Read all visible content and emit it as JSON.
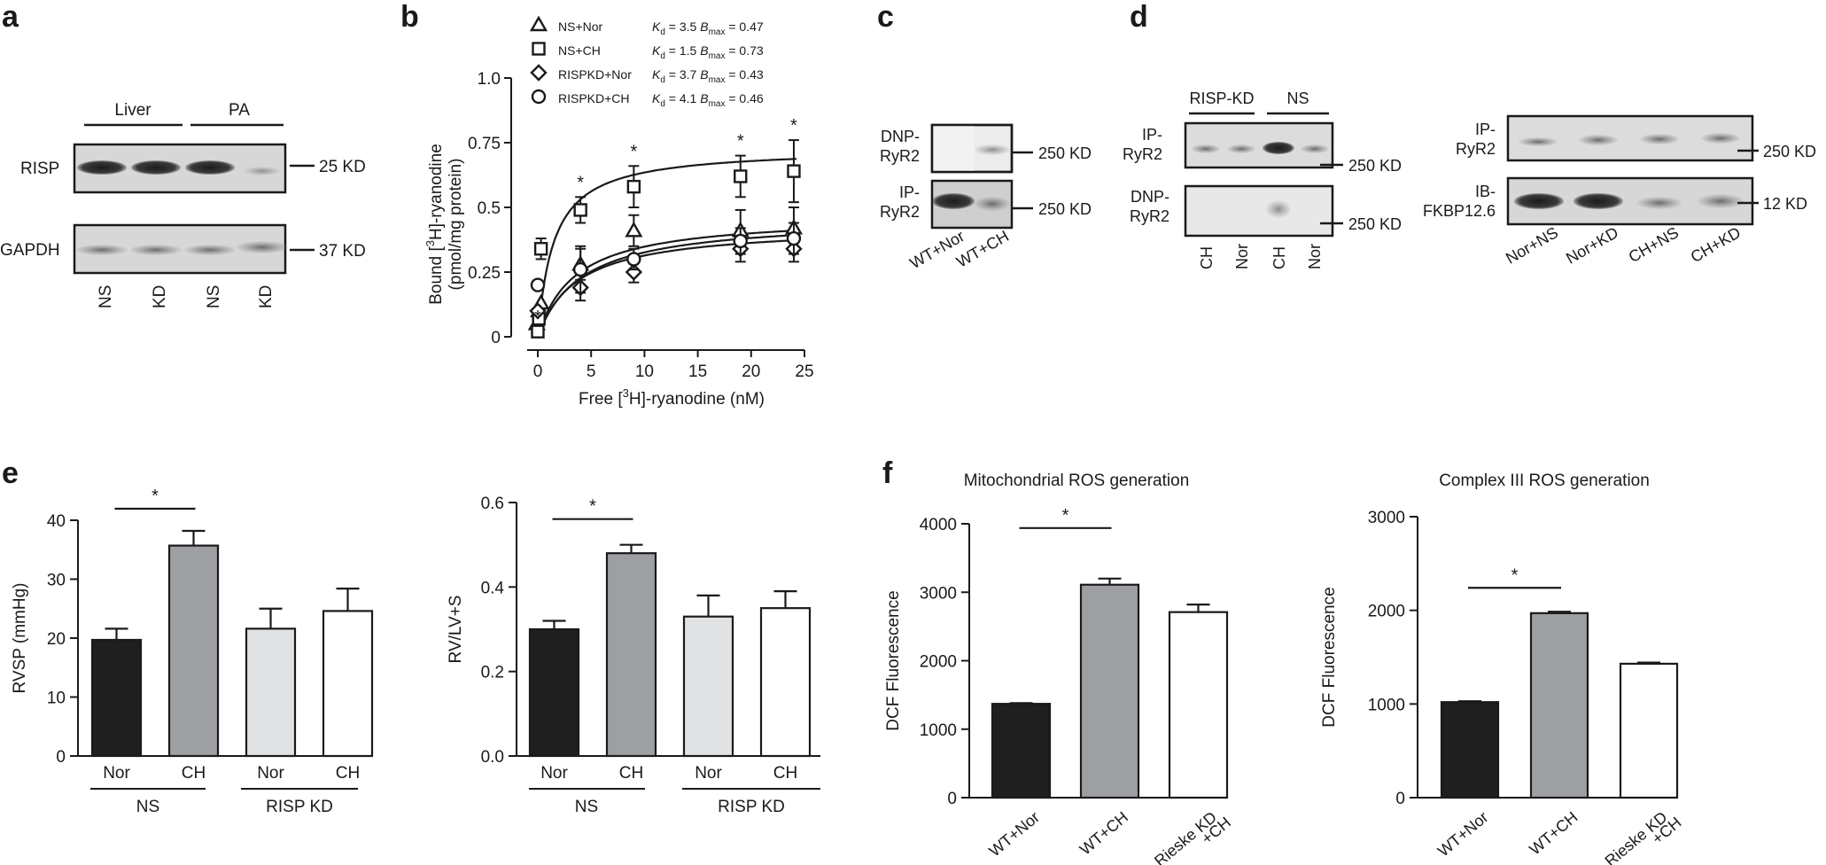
{
  "panels": {
    "a": {
      "letter": "a",
      "tissue_left": "Liver",
      "tissue_right": "PA",
      "row1_label": "RISP",
      "row1_size": "25 KD",
      "row2_label": "GAPDH",
      "row2_size": "37 KD",
      "lanes": [
        "NS",
        "KD",
        "NS",
        "KD"
      ]
    },
    "b": {
      "letter": "b",
      "legend": [
        {
          "label": "NS+Nor",
          "kd": "3.5",
          "bmax": "0.47",
          "marker": "triangle"
        },
        {
          "label": "NS+CH",
          "kd": "1.5",
          "bmax": "0.73",
          "marker": "square"
        },
        {
          "label": "RISPKD+Nor",
          "kd": "3.7",
          "bmax": "0.43",
          "marker": "diamond"
        },
        {
          "label": "RISPKD+CH",
          "kd": "4.1",
          "bmax": "0.46",
          "marker": "circle"
        }
      ],
      "kd_label": "K",
      "kd_sub": "d",
      "bmax_label": "B",
      "bmax_sub": "max",
      "eq": " = ",
      "ylabel_line1_pre": "Bound [",
      "ylabel_line1_sup": "3",
      "ylabel_line1_post": "H]-ryanodine",
      "ylabel_line2": "(pmol/mg protein)",
      "xlabel_pre": "Free [",
      "xlabel_sup": "3",
      "xlabel_post": "H]-ryanodine (nM)",
      "star": "*"
    },
    "c": {
      "letter": "c",
      "row1_label_1": "DNP-",
      "row1_label_2": "RyR2",
      "row2_label_1": "IP-",
      "row2_label_2": "RyR2",
      "size": "250 KD",
      "lanes": [
        "WT+Nor",
        "WT+CH"
      ]
    },
    "d": {
      "letter": "d",
      "group1": "RISP-KD",
      "group2": "NS",
      "left_row1_1": "IP-",
      "left_row1_2": "RyR2",
      "left_row2_1": "DNP-",
      "left_row2_2": "RyR2",
      "size": "250 KD",
      "left_lanes": [
        "CH",
        "Nor",
        "CH",
        "Nor"
      ],
      "right_row1_1": "IP-",
      "right_row1_2": "RyR2",
      "right_row2_1": "IB-",
      "right_row2_2": "FKBP12.6",
      "right_size1": "250 KD",
      "right_size2": "12 KD",
      "right_lanes": [
        "Nor+NS",
        "Nor+KD",
        "CH+NS",
        "CH+KD"
      ]
    },
    "e": {
      "letter": "e",
      "group_ns": "NS",
      "group_kd": "RISP KD",
      "star": "*"
    },
    "f": {
      "letter": "f",
      "star": "*"
    }
  },
  "colors": {
    "black_bar": "#1f1f1f",
    "dark_gray_bar": "#9d9fa2",
    "light_gray_bar": "#e1e2e3",
    "white_bar": "#ffffff",
    "blot_bg": "#d7d7d7"
  },
  "chart_data": [
    {
      "id": "b",
      "type": "scatter",
      "xlabel": "Free [3H]-ryanodine (nM)",
      "ylabel": "Bound [3H]-ryanodine (pmol/mg protein)",
      "xlim": [
        -1,
        25
      ],
      "ylim": [
        0,
        1.0
      ],
      "xticks": [
        0,
        5,
        10,
        15,
        20,
        25
      ],
      "yticks": [
        0,
        0.25,
        0.5,
        0.75,
        1.0
      ],
      "ytick_labels": [
        "0",
        "0.25",
        "0.5",
        "0.75",
        "1.0"
      ],
      "series": [
        {
          "name": "NS+Nor",
          "marker": "triangle",
          "kd": 3.5,
          "bmax": 0.47,
          "x": [
            -0.1,
            0.1,
            0.3,
            4,
            9,
            19,
            24
          ],
          "y": [
            0.05,
            0.1,
            0.13,
            0.28,
            0.41,
            0.41,
            0.42
          ],
          "err": [
            0,
            0,
            0,
            0.06,
            0.06,
            0.08,
            0.08
          ]
        },
        {
          "name": "NS+CH",
          "marker": "square",
          "kd": 1.5,
          "bmax": 0.73,
          "x": [
            0,
            0.1,
            0.3,
            4,
            9,
            19,
            24
          ],
          "y": [
            0.02,
            0.07,
            0.34,
            0.49,
            0.58,
            0.62,
            0.64
          ],
          "err": [
            0,
            0,
            0.04,
            0.05,
            0.08,
            0.08,
            0.12
          ]
        },
        {
          "name": "RISPKD+Nor",
          "marker": "diamond",
          "kd": 3.7,
          "bmax": 0.43,
          "x": [
            0,
            4,
            9,
            19,
            24
          ],
          "y": [
            0.1,
            0.19,
            0.25,
            0.34,
            0.34
          ],
          "err": [
            0,
            0.05,
            0.04,
            0.05,
            0.05
          ]
        },
        {
          "name": "RISPKD+CH",
          "marker": "circle",
          "kd": 4.1,
          "bmax": 0.46,
          "x": [
            0,
            4,
            9,
            19,
            24
          ],
          "y": [
            0.2,
            0.26,
            0.3,
            0.37,
            0.38
          ],
          "err": [
            0,
            0.09,
            0.04,
            0.05,
            0.06
          ]
        }
      ],
      "star_x": [
        0,
        4,
        9,
        19,
        24
      ]
    },
    {
      "id": "e1",
      "type": "bar",
      "categories": [
        "Nor",
        "CH",
        "Nor",
        "CH"
      ],
      "values": [
        19.7,
        35.7,
        21.6,
        24.6
      ],
      "errors": [
        1.9,
        2.5,
        3.4,
        3.8
      ],
      "ylabel": "RVSP (mmHg)",
      "ylim": [
        0,
        40
      ],
      "yticks": [
        0,
        10,
        20,
        30,
        40
      ],
      "ytick_labels": [
        "0",
        "10",
        "20",
        "30",
        "40"
      ],
      "bar_colors": [
        "#1f1f1f",
        "#9d9fa2",
        "#e1e2e3",
        "#ffffff"
      ],
      "sig_pair": [
        0,
        1
      ]
    },
    {
      "id": "e2",
      "type": "bar",
      "categories": [
        "Nor",
        "CH",
        "Nor",
        "CH"
      ],
      "values": [
        0.3,
        0.48,
        0.33,
        0.35
      ],
      "errors": [
        0.02,
        0.02,
        0.05,
        0.04
      ],
      "ylabel": "RV/LV+S",
      "ylim": [
        0,
        0.6
      ],
      "yticks": [
        0,
        0.2,
        0.4,
        0.6
      ],
      "ytick_labels": [
        "0.0",
        "0.2",
        "0.4",
        "0.6"
      ],
      "bar_colors": [
        "#1f1f1f",
        "#9d9fa2",
        "#e1e2e3",
        "#ffffff"
      ],
      "sig_pair": [
        0,
        1
      ]
    },
    {
      "id": "f1",
      "type": "bar",
      "title": "Mitochondrial ROS generation",
      "categories": [
        "WT+Nor",
        "WT+CH",
        "Rieske KD +CH"
      ],
      "category_lines": [
        [
          "WT+Nor"
        ],
        [
          "WT+CH"
        ],
        [
          "Rieske KD",
          "+CH"
        ]
      ],
      "values": [
        1370,
        3110,
        2710
      ],
      "errors": [
        10,
        90,
        110
      ],
      "ylabel": "DCF Fluorescence",
      "ylim": [
        0,
        4000
      ],
      "yticks": [
        0,
        1000,
        2000,
        3000,
        4000
      ],
      "ytick_labels": [
        "0",
        "1000",
        "2000",
        "3000",
        "4000"
      ],
      "bar_colors": [
        "#1f1f1f",
        "#9d9fa2",
        "#ffffff"
      ],
      "sig_pair": [
        0,
        1
      ]
    },
    {
      "id": "f2",
      "type": "bar",
      "title": "Complex III ROS generation",
      "categories": [
        "WT+Nor",
        "WT+CH",
        "Rieske KD +CH"
      ],
      "category_lines": [
        [
          "WT+Nor"
        ],
        [
          "WT+CH"
        ],
        [
          "Rieske KD",
          "+CH"
        ]
      ],
      "values": [
        1020,
        1970,
        1430
      ],
      "errors": [
        10,
        15,
        12
      ],
      "ylabel": "DCF Fluorescence",
      "ylim": [
        0,
        3000
      ],
      "yticks": [
        0,
        1000,
        2000,
        3000
      ],
      "ytick_labels": [
        "0",
        "1000",
        "2000",
        "3000"
      ],
      "bar_colors": [
        "#1f1f1f",
        "#9d9fa2",
        "#ffffff"
      ],
      "sig_pair": [
        0,
        1
      ]
    }
  ]
}
